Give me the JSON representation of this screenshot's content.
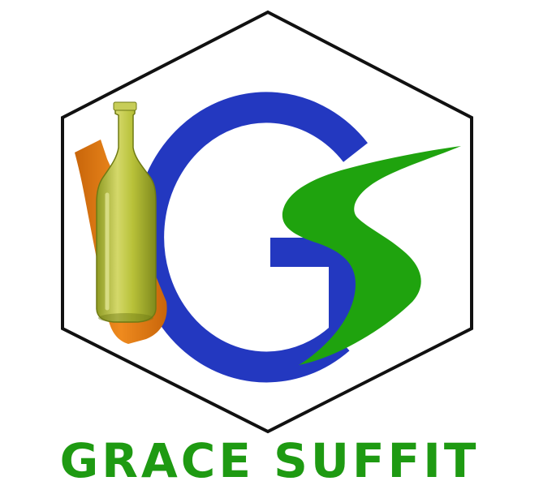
{
  "brand": {
    "name": "GRACE SUFFIT"
  },
  "colors": {
    "hexagon_stroke": "#111111",
    "g_letter": "#2338c0",
    "s_letter": "#1fa30e",
    "brand_text": "#1e9a12",
    "bottle_green": "#b9c23a",
    "bottle_orange": "#e07a14",
    "background": "#ffffff"
  },
  "icons": {
    "logo": "gs-hexagon-logo",
    "bottle_front": "green-glass-bottle-icon",
    "bottle_back": "orange-glass-bottle-icon"
  }
}
